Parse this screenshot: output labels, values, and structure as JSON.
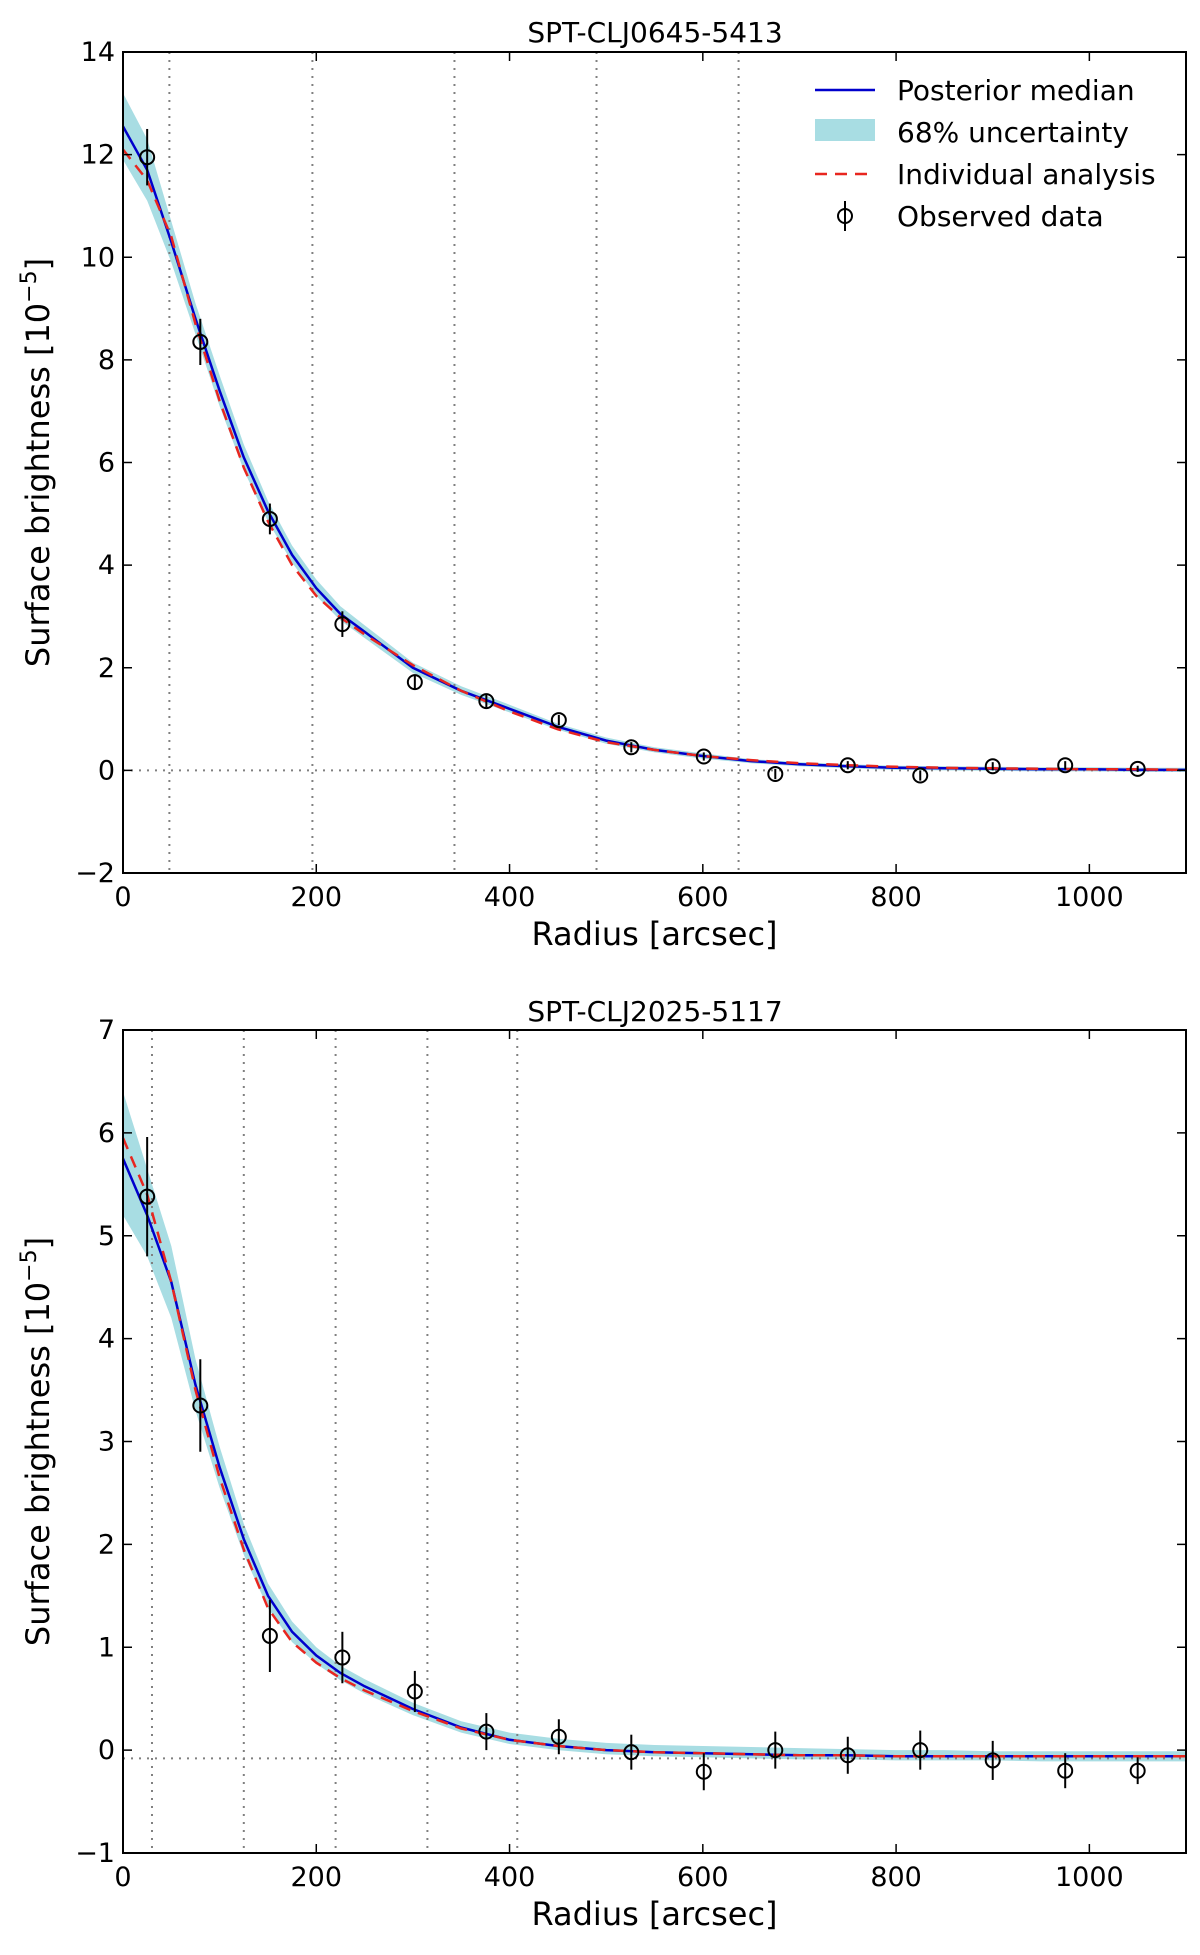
{
  "chart_data": [
    {
      "type": "line",
      "title": "SPT-CLJ0645-5413",
      "xlabel": "Radius [arcsec]",
      "ylabel": "Surface brightness [10",
      "ylabel_exponent": "−5",
      "ylabel_close": "]",
      "xlim": [
        0,
        1100
      ],
      "ylim": [
        -2,
        14
      ],
      "xticks": [
        0,
        200,
        400,
        600,
        800,
        1000
      ],
      "xtick_labels": [
        "0",
        "200",
        "400",
        "600",
        "800",
        "1000"
      ],
      "yticks": [
        -2,
        0,
        2,
        4,
        6,
        8,
        10,
        12,
        14
      ],
      "ytick_labels": [
        "−2",
        "0",
        "2",
        "4",
        "6",
        "8",
        "10",
        "12",
        "14"
      ],
      "vlines": [
        48,
        196,
        343,
        490,
        637
      ],
      "hline": 0,
      "legend_position": "top-right",
      "legend": [
        {
          "label": "Posterior median",
          "kind": "line",
          "color": "#0000cc"
        },
        {
          "label": "68% uncertainty",
          "kind": "band",
          "color": "#a8dde3"
        },
        {
          "label": "Individual analysis",
          "kind": "dashed",
          "color": "#e8261f"
        },
        {
          "label": "Observed data",
          "kind": "marker",
          "color": "#000000"
        }
      ],
      "posterior_median": {
        "x": [
          0,
          25,
          50,
          75,
          100,
          125,
          150,
          175,
          200,
          225,
          250,
          300,
          350,
          400,
          450,
          500,
          550,
          600,
          650,
          700,
          750,
          800,
          850,
          900,
          950,
          1000,
          1050,
          1100
        ],
        "y": [
          12.55,
          11.7,
          10.3,
          8.8,
          7.4,
          6.1,
          5.05,
          4.2,
          3.55,
          3.05,
          2.7,
          2.0,
          1.55,
          1.2,
          0.85,
          0.58,
          0.4,
          0.28,
          0.18,
          0.12,
          0.08,
          0.05,
          0.04,
          0.03,
          0.02,
          0.02,
          0.01,
          0.01
        ]
      },
      "uncertainty_band": {
        "x": [
          0,
          25,
          50,
          75,
          100,
          125,
          150,
          175,
          200,
          225,
          250,
          300,
          350,
          400,
          450,
          500,
          550,
          600,
          650,
          700,
          750,
          800,
          850,
          900,
          950,
          1000,
          1050,
          1100
        ],
        "lower": [
          11.9,
          11.1,
          9.9,
          8.5,
          7.1,
          5.85,
          4.85,
          4.05,
          3.4,
          2.92,
          2.58,
          1.9,
          1.47,
          1.13,
          0.79,
          0.52,
          0.35,
          0.23,
          0.14,
          0.08,
          0.04,
          0.01,
          0.0,
          -0.01,
          -0.02,
          -0.02,
          -0.03,
          -0.03
        ],
        "upper": [
          13.2,
          12.3,
          10.7,
          9.1,
          7.7,
          6.35,
          5.25,
          4.38,
          3.72,
          3.2,
          2.83,
          2.1,
          1.64,
          1.28,
          0.91,
          0.64,
          0.45,
          0.33,
          0.22,
          0.16,
          0.12,
          0.09,
          0.08,
          0.07,
          0.06,
          0.06,
          0.05,
          0.05
        ]
      },
      "individual_analysis": {
        "x": [
          0,
          25,
          50,
          75,
          100,
          125,
          150,
          175,
          200,
          225,
          250,
          300,
          350,
          400,
          450,
          500,
          550,
          600,
          650,
          700,
          750,
          800,
          850,
          900,
          950,
          1000,
          1050,
          1100
        ],
        "y": [
          12.1,
          11.5,
          10.4,
          8.7,
          7.2,
          5.9,
          4.85,
          4.0,
          3.4,
          2.98,
          2.65,
          2.05,
          1.55,
          1.15,
          0.8,
          0.55,
          0.4,
          0.28,
          0.2,
          0.14,
          0.1,
          0.07,
          0.05,
          0.04,
          0.03,
          0.02,
          0.02,
          0.01
        ]
      },
      "observed_data": {
        "x": [
          25,
          80,
          152,
          227,
          302,
          376,
          451,
          526,
          601,
          675,
          750,
          825,
          900,
          975,
          1050
        ],
        "y": [
          11.95,
          8.35,
          4.9,
          2.85,
          1.72,
          1.35,
          0.98,
          0.45,
          0.27,
          -0.07,
          0.1,
          -0.1,
          0.08,
          0.1,
          0.03
        ],
        "yerr": [
          0.55,
          0.45,
          0.3,
          0.25,
          0.15,
          0.12,
          0.1,
          0.1,
          0.08,
          0.1,
          0.08,
          0.1,
          0.08,
          0.08,
          0.06
        ]
      }
    },
    {
      "type": "line",
      "title": "SPT-CLJ2025-5117",
      "xlabel": "Radius [arcsec]",
      "ylabel": "Surface brightness [10",
      "ylabel_exponent": "−5",
      "ylabel_close": "]",
      "xlim": [
        0,
        1100
      ],
      "ylim": [
        -1,
        7
      ],
      "xticks": [
        0,
        200,
        400,
        600,
        800,
        1000
      ],
      "xtick_labels": [
        "0",
        "200",
        "400",
        "600",
        "800",
        "1000"
      ],
      "yticks": [
        -1,
        0,
        1,
        2,
        3,
        4,
        5,
        6,
        7
      ],
      "ytick_labels": [
        "−1",
        "0",
        "1",
        "2",
        "3",
        "4",
        "5",
        "6",
        "7"
      ],
      "vlines": [
        30,
        125,
        220,
        315,
        408
      ],
      "hline": -0.08,
      "posterior_median": {
        "x": [
          0,
          25,
          50,
          75,
          100,
          125,
          150,
          175,
          200,
          225,
          250,
          300,
          350,
          400,
          450,
          500,
          550,
          600,
          650,
          700,
          750,
          800,
          850,
          900,
          950,
          1000,
          1050,
          1100
        ],
        "y": [
          5.75,
          5.2,
          4.55,
          3.55,
          2.75,
          2.05,
          1.5,
          1.15,
          0.92,
          0.75,
          0.62,
          0.4,
          0.22,
          0.1,
          0.04,
          0.0,
          -0.02,
          -0.03,
          -0.04,
          -0.05,
          -0.05,
          -0.06,
          -0.06,
          -0.06,
          -0.06,
          -0.06,
          -0.06,
          -0.06
        ]
      },
      "uncertainty_band": {
        "x": [
          0,
          25,
          50,
          75,
          100,
          125,
          150,
          175,
          200,
          225,
          250,
          300,
          350,
          400,
          450,
          500,
          550,
          600,
          650,
          700,
          750,
          800,
          850,
          900,
          950,
          1000,
          1050,
          1100
        ],
        "lower": [
          5.2,
          4.8,
          4.2,
          3.3,
          2.55,
          1.9,
          1.38,
          1.05,
          0.84,
          0.68,
          0.55,
          0.34,
          0.17,
          0.06,
          0.0,
          -0.04,
          -0.06,
          -0.07,
          -0.08,
          -0.09,
          -0.09,
          -0.1,
          -0.1,
          -0.1,
          -0.11,
          -0.11,
          -0.11,
          -0.11
        ],
        "upper": [
          6.4,
          5.65,
          4.9,
          3.8,
          2.95,
          2.2,
          1.62,
          1.25,
          1.0,
          0.82,
          0.69,
          0.46,
          0.28,
          0.17,
          0.11,
          0.07,
          0.05,
          0.04,
          0.03,
          0.02,
          0.01,
          0.0,
          0.0,
          -0.01,
          -0.01,
          -0.01,
          -0.01,
          -0.01
        ]
      },
      "individual_analysis": {
        "x": [
          0,
          25,
          50,
          75,
          100,
          125,
          150,
          175,
          200,
          225,
          250,
          300,
          350,
          400,
          450,
          500,
          550,
          600,
          650,
          700,
          750,
          800,
          850,
          900,
          950,
          1000,
          1050,
          1100
        ],
        "y": [
          5.95,
          5.4,
          4.55,
          3.5,
          2.65,
          1.95,
          1.38,
          1.05,
          0.85,
          0.7,
          0.58,
          0.38,
          0.21,
          0.1,
          0.04,
          0.0,
          -0.02,
          -0.03,
          -0.04,
          -0.05,
          -0.05,
          -0.06,
          -0.06,
          -0.06,
          -0.06,
          -0.06,
          -0.06,
          -0.06
        ]
      },
      "observed_data": {
        "x": [
          25,
          80,
          152,
          227,
          302,
          376,
          451,
          526,
          601,
          675,
          750,
          825,
          900,
          975,
          1050
        ],
        "y": [
          5.38,
          3.35,
          1.11,
          0.9,
          0.57,
          0.18,
          0.13,
          -0.02,
          -0.21,
          0.0,
          -0.05,
          0.0,
          -0.1,
          -0.2,
          -0.2
        ],
        "yerr": [
          0.58,
          0.45,
          0.35,
          0.25,
          0.2,
          0.18,
          0.17,
          0.17,
          0.18,
          0.18,
          0.18,
          0.19,
          0.19,
          0.17,
          0.13
        ]
      }
    }
  ]
}
